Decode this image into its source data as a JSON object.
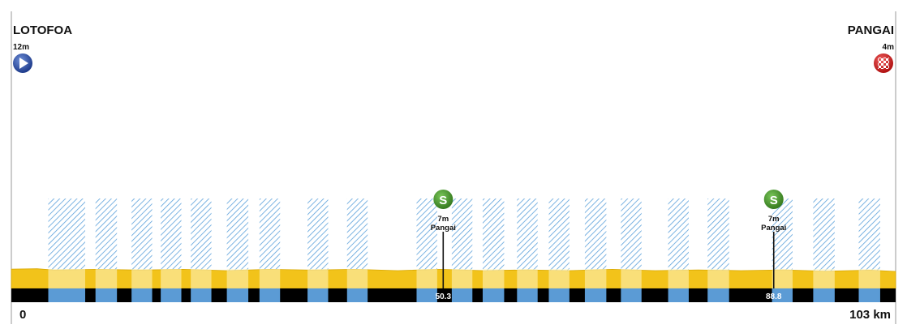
{
  "chart_data": {
    "type": "area",
    "title": "",
    "xlabel": "",
    "ylabel": "",
    "xlim": [
      0,
      103
    ],
    "x_unit": "km",
    "start": {
      "name": "LOTOFOA",
      "elevation_label": "12m",
      "elevation": 12,
      "km": 0
    },
    "finish": {
      "name": "PANGAI",
      "elevation_label": "4m",
      "elevation": 4,
      "km": 103
    },
    "x_tick_labels": {
      "left": "0",
      "right": "103 km"
    },
    "profile_km": [
      0,
      3,
      5,
      10,
      15,
      20,
      25,
      30,
      35,
      40,
      45,
      50,
      55,
      60,
      65,
      70,
      75,
      80,
      85,
      90,
      95,
      100,
      103
    ],
    "profile_elevation": [
      12,
      10,
      9,
      8,
      9,
      8,
      7,
      8,
      9,
      8,
      7,
      8,
      7,
      6,
      7,
      8,
      7,
      6,
      7,
      6,
      5,
      5,
      4
    ],
    "sprints": [
      {
        "km": 50.3,
        "km_label": "50.3",
        "elevation_label": "7m",
        "name": "Pangai",
        "badge": "S"
      },
      {
        "km": 88.8,
        "km_label": "88.8",
        "elevation_label": "7m",
        "name": "Pangai",
        "badge": "S"
      }
    ],
    "sea_segments_km": [
      [
        4.3,
        8.6
      ],
      [
        9.8,
        12.3
      ],
      [
        14.0,
        16.4
      ],
      [
        17.4,
        19.8
      ],
      [
        20.9,
        23.3
      ],
      [
        25.1,
        27.6
      ],
      [
        28.9,
        31.3
      ],
      [
        34.5,
        36.9
      ],
      [
        39.1,
        41.5
      ],
      [
        47.2,
        49.6
      ],
      [
        51.3,
        53.7
      ],
      [
        54.9,
        57.4
      ],
      [
        58.9,
        61.3
      ],
      [
        62.6,
        65.0
      ],
      [
        66.8,
        69.3
      ],
      [
        71.0,
        73.4
      ],
      [
        76.5,
        78.9
      ],
      [
        81.1,
        83.6
      ],
      [
        88.6,
        91.0
      ],
      [
        93.4,
        95.9
      ],
      [
        98.7,
        101.2
      ]
    ],
    "colors": {
      "terrain": "#f2c31a",
      "sea_hatch": "#5aa0da",
      "sea_bar": "#5b9bd5",
      "road_bar": "#000000",
      "sprint_badge": "#4a9a2e",
      "start_marker": "#2a4aa0",
      "finish_marker": "#d42020"
    },
    "icons": {
      "start": "play-icon",
      "finish": "checkered-flag-icon",
      "sprint": "sprint-badge-icon"
    }
  }
}
